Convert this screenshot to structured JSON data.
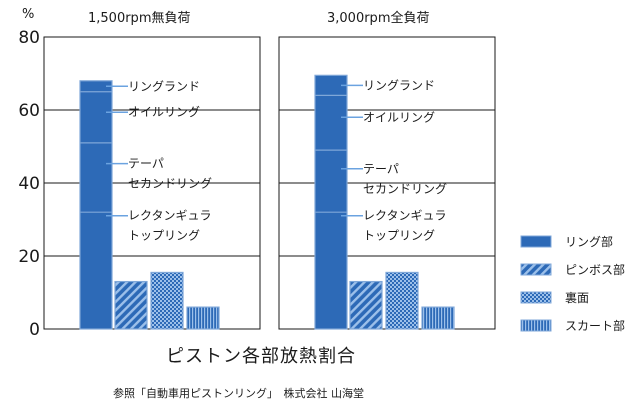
{
  "chart_data": {
    "type": "bar",
    "title": "ピストン各部放熱割合",
    "source": "参照「自動車用ピストンリング」　株式会社 山海堂",
    "ylabel": "%",
    "ylim": [
      0,
      80
    ],
    "yticks": [
      "0",
      "20",
      "40",
      "60",
      "80"
    ],
    "grid": true,
    "legend_position": "right",
    "legend": [
      {
        "name": "リング部",
        "pattern": "solid"
      },
      {
        "name": "ピンボス部",
        "pattern": "diagonal"
      },
      {
        "name": "裏面",
        "pattern": "crosshatch"
      },
      {
        "name": "スカート部",
        "pattern": "vertical"
      }
    ],
    "stack_labels": {
      "ring_land": "リングランド",
      "oil_ring": "オイルリング",
      "taper_1": "テーパ",
      "taper_2": "セカンドリング",
      "rect_1": "レクタンギュラ",
      "rect_2": "トップリング"
    },
    "panels": [
      {
        "title": "1,500rpm無負荷",
        "ring_stack": [
          {
            "segment": "レクタンギュラ トップリング",
            "value": 32
          },
          {
            "segment": "テーパ セカンドリング",
            "value": 19
          },
          {
            "segment": "オイルリング",
            "value": 14
          },
          {
            "segment": "リングランド",
            "value": 3
          }
        ],
        "ring_total": 68,
        "bars": [
          {
            "category": "ピンボス部",
            "value": 13
          },
          {
            "category": "裏面",
            "value": 15.5
          },
          {
            "category": "スカート部",
            "value": 6
          }
        ]
      },
      {
        "title": "3,000rpm全負荷",
        "ring_stack": [
          {
            "segment": "レクタンギュラ トップリング",
            "value": 32
          },
          {
            "segment": "テーパ セカンドリング",
            "value": 17
          },
          {
            "segment": "オイルリング",
            "value": 15
          },
          {
            "segment": "リングランド",
            "value": 5.5
          }
        ],
        "ring_total": 69.5,
        "bars": [
          {
            "category": "ピンボス部",
            "value": 13
          },
          {
            "category": "裏面",
            "value": 15.5
          },
          {
            "category": "スカート部",
            "value": 6
          }
        ]
      }
    ]
  },
  "colors": {
    "bar_fill": "#2d6ab7",
    "bar_stroke": "#7fa7d8",
    "pattern_line": "#9cc0ea",
    "leader": "#6ba3e0",
    "grid": "#1a1a1a"
  }
}
